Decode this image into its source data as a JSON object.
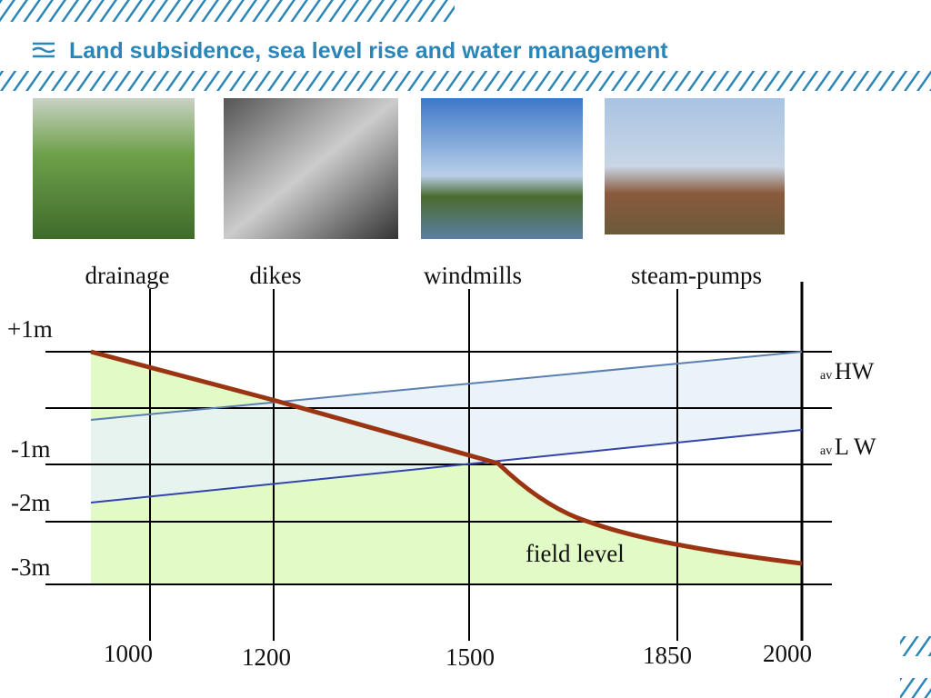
{
  "header": {
    "title": "Land subsidence, sea level rise and water management"
  },
  "diagram": {
    "eras": [
      "drainage",
      "dikes",
      "windmills",
      "steam-pumps"
    ],
    "levels": [
      "+1m",
      "-1m",
      "-2m",
      "-3m"
    ],
    "years": [
      "1000",
      "1200",
      "1500",
      "1850",
      "2000"
    ],
    "high_water": {
      "prefix": "av",
      "label": "HW"
    },
    "low_water": {
      "prefix": "av",
      "label": "L W"
    },
    "field_label": "field level"
  }
}
